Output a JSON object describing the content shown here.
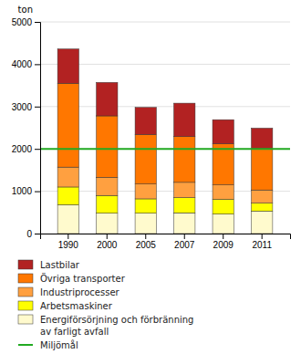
{
  "chart_data": {
    "type": "bar",
    "stacked": true,
    "categories": [
      "1990",
      "2000",
      "2005",
      "2007",
      "2009",
      "2011"
    ],
    "series": [
      {
        "name": "Energiförsörjning och förbränning\nav farligt avfall",
        "color": "#FFFACD",
        "values": [
          680,
          480,
          480,
          490,
          460,
          530
        ]
      },
      {
        "name": "Arbetsmaskiner",
        "color": "#FFFF00",
        "values": [
          420,
          420,
          340,
          360,
          350,
          190
        ]
      },
      {
        "name": "Industriprocesser",
        "color": "#FFA040",
        "values": [
          470,
          430,
          350,
          360,
          340,
          310
        ]
      },
      {
        "name": "Övriga transporter",
        "color": "#FF7700",
        "values": [
          1980,
          1450,
          1170,
          1080,
          970,
          960
        ]
      },
      {
        "name": "Lastbilar",
        "color": "#B22222",
        "values": [
          810,
          790,
          640,
          790,
          570,
          500
        ]
      }
    ],
    "reference_line": {
      "name": "Miljömål",
      "value": 2000,
      "color": "#22aa22"
    },
    "y_label": "ton",
    "ylim": [
      0,
      5000
    ],
    "yticks": [
      0,
      1000,
      2000,
      3000,
      4000,
      5000
    ],
    "grid": true
  }
}
